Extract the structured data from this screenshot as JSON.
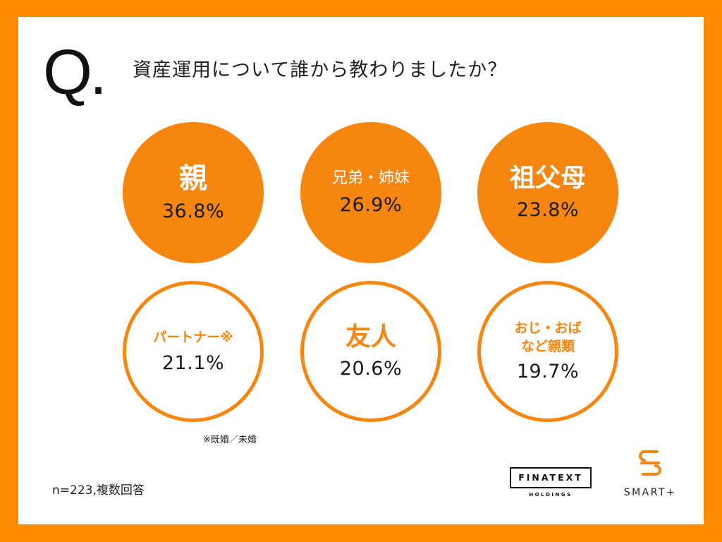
{
  "question": {
    "mark": "Q.",
    "text": "資産運用について誰から教わりましたか？"
  },
  "results": [
    {
      "label": "親",
      "value": "36.8%"
    },
    {
      "label": "兄弟・姉妹",
      "value": "26.9%"
    },
    {
      "label": "祖父母",
      "value": "23.8%"
    },
    {
      "label": "パートナー※",
      "value": "21.1%"
    },
    {
      "label": "友人",
      "value": "20.6%"
    },
    {
      "label": "おじ・おば\nなど親類",
      "value": "19.7%"
    }
  ],
  "footnote": "※既婚／未婚",
  "sample_note": "n=223,複数回答",
  "logos": {
    "finatext": "FINATEXT",
    "finatext_sub": "HOLDINGS",
    "smart_plus": "SMART+"
  },
  "colors": {
    "frame": "#ff8c00",
    "accent": "#f78610"
  }
}
